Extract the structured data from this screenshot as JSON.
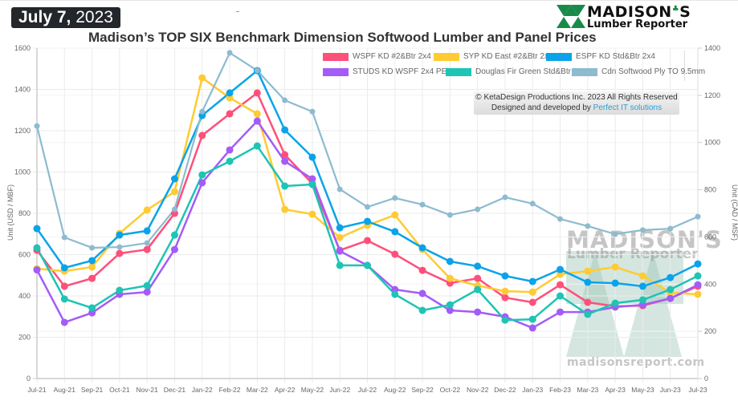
{
  "header": {
    "date_bold": "July 7,",
    "date_year": " 2023",
    "logo_line1": "MADISON",
    "logo_apostrophe_s": "S",
    "logo_line2": "Lumber Reporter"
  },
  "copyright": {
    "line1": "© KetaDesign Productions Inc. 2023 All Rights Reserved",
    "line2_prefix": "Designed and developed by ",
    "line2_link": "Perfect IT solutions"
  },
  "watermark": {
    "line1": "MADISON'S",
    "line2": "Lumber Reporter",
    "line3": "madisonsreport.com"
  },
  "chart_data": {
    "type": "line",
    "title": "Madison’s TOP SIX Benchmark Dimension Softwood Lumber and Panel Prices",
    "xlabel": "",
    "ylabel": "Unit (USD / MBF)",
    "y2label": "Unit (CAD / MSF)",
    "ylim": [
      0,
      1600
    ],
    "y2lim": [
      0,
      1400
    ],
    "yticks": [
      0,
      200,
      400,
      600,
      800,
      1000,
      1200,
      1400,
      1600
    ],
    "y2ticks": [
      0,
      200,
      400,
      600,
      800,
      1000,
      1200,
      1400
    ],
    "grid": true,
    "legend_position": "top-right",
    "categories": [
      "Jul-21",
      "Aug-21",
      "Sep-21",
      "Oct-21",
      "Nov-21",
      "Dec-21",
      "Jan-22",
      "Feb-22",
      "Mar-22",
      "Apr-22",
      "May-22",
      "Jun-22",
      "Jul-22",
      "Aug-22",
      "Sep-22",
      "Oct-22",
      "Nov-22",
      "Dec-22",
      "Jan-23",
      "Feb-23",
      "Mar-23",
      "Apr-23",
      "May-23",
      "Jun-23",
      "Jul-23"
    ],
    "series": [
      {
        "name": "WSPF KD #2&Btr 2x4",
        "color": "#ff4f7b",
        "axis": "left",
        "values": [
          621,
          447,
          485,
          606,
          625,
          800,
          1177,
          1282,
          1383,
          1084,
          944,
          621,
          668,
          602,
          524,
          462,
          485,
          392,
          369,
          454,
          369,
          350,
          353,
          388,
          447
        ]
      },
      {
        "name": "SYP KD East #2&Btr 2x4",
        "color": "#ffcb33",
        "axis": "left",
        "values": [
          532,
          520,
          540,
          703,
          816,
          905,
          1456,
          1359,
          1282,
          819,
          796,
          683,
          742,
          792,
          625,
          485,
          450,
          423,
          419,
          505,
          520,
          540,
          497,
          416,
          408
        ]
      },
      {
        "name": "ESPF KD Std&Btr 2x4",
        "color": "#0aa3ea",
        "axis": "left",
        "values": [
          726,
          536,
          571,
          695,
          715,
          967,
          1274,
          1383,
          1491,
          1204,
          1072,
          730,
          761,
          711,
          633,
          567,
          544,
          497,
          470,
          528,
          466,
          462,
          447,
          489,
          555
        ]
      },
      {
        "name": "STUDS KD WSPF 2x4 PET",
        "color": "#a35cf7",
        "axis": "left",
        "values": [
          526,
          272,
          318,
          408,
          419,
          625,
          948,
          1107,
          1247,
          1052,
          967,
          617,
          548,
          431,
          412,
          330,
          322,
          299,
          245,
          322,
          322,
          346,
          357,
          388,
          454
        ]
      },
      {
        "name": "Douglas Fir Green Std&Btr 2x4",
        "color": "#1ec4b4",
        "axis": "left",
        "values": [
          633,
          385,
          342,
          427,
          450,
          695,
          986,
          1052,
          1126,
          932,
          940,
          548,
          548,
          408,
          330,
          357,
          431,
          283,
          287,
          400,
          311,
          365,
          381,
          431,
          497
        ]
      },
      {
        "name": "Cdn Softwood Ply TO 9.5mm",
        "color": "#8dbbcf",
        "axis": "right",
        "values": [
          1070,
          598,
          554,
          557,
          574,
          717,
          1131,
          1380,
          1305,
          1179,
          1131,
          802,
          727,
          765,
          737,
          693,
          717,
          768,
          741,
          676,
          646,
          612,
          629,
          635,
          686
        ]
      }
    ]
  }
}
